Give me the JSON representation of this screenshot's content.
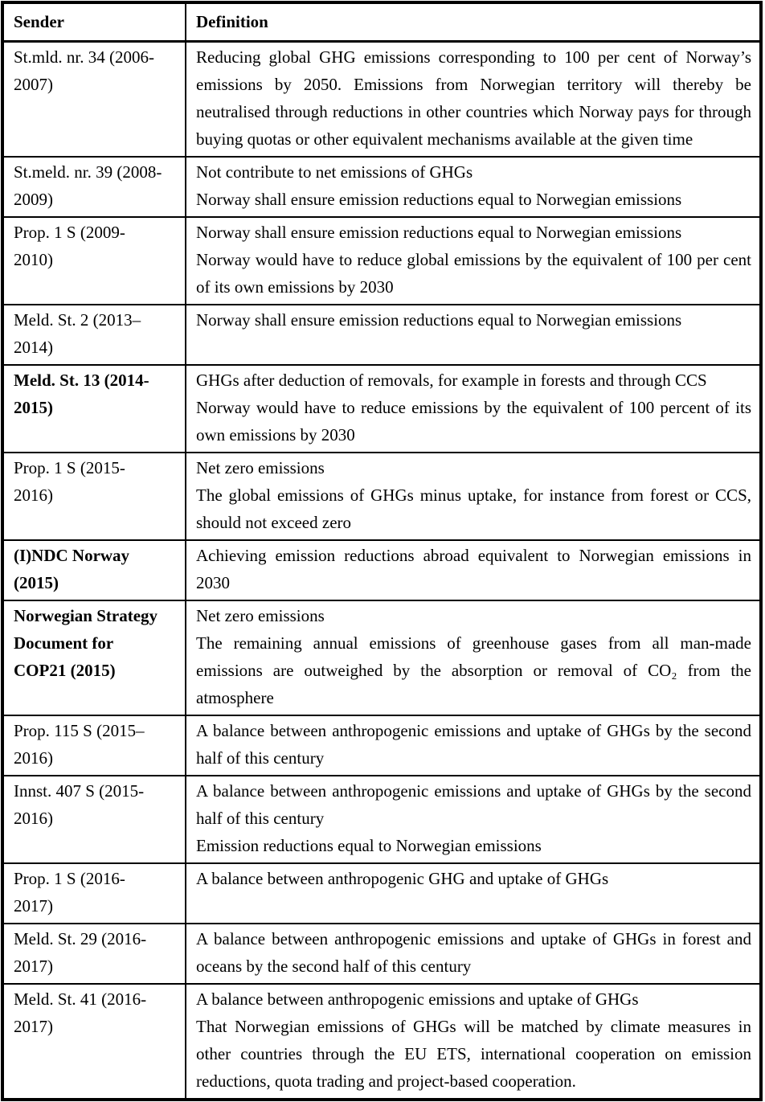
{
  "table": {
    "headers": {
      "sender": "Sender",
      "definition": "Definition"
    },
    "colors": {
      "border": "#000000",
      "text": "#000000",
      "background": "#ffffff"
    },
    "rows": [
      {
        "sender": "St.mld. nr. 34 (2006-2007)",
        "bold": false,
        "definitions": [
          "Reducing global GHG emissions corresponding to 100 per cent of Norway’s emissions by 2050. Emissions from Norwegian territory will thereby be neutralised through reductions in other countries which Norway pays for through buying quotas or other equivalent mechanisms available at the given time"
        ]
      },
      {
        "sender": "St.meld. nr. 39 (2008-2009)",
        "bold": false,
        "definitions": [
          "Not contribute to net emissions of GHGs",
          "Norway shall ensure emission reductions equal to Norwegian emissions"
        ]
      },
      {
        "sender": "Prop. 1 S (2009-2010)",
        "bold": false,
        "definitions": [
          "Norway shall ensure emission reductions equal to Norwegian emissions",
          "Norway would have to reduce global emissions by the equivalent of 100 per cent of its own emissions by 2030"
        ]
      },
      {
        "sender": "Meld. St. 2 (2013–2014)",
        "bold": false,
        "definitions": [
          "Norway shall ensure emission reductions equal to Norwegian emissions"
        ]
      },
      {
        "sender": "Meld. St. 13 (2014-2015)",
        "bold": true,
        "definitions": [
          "GHGs after deduction of removals, for example in forests and through CCS",
          "Norway would have to reduce emissions by the equivalent of 100 percent of its own emissions by 2030"
        ]
      },
      {
        "sender": "Prop. 1 S (2015-2016)",
        "bold": false,
        "definitions": [
          "Net zero emissions",
          "The global emissions of GHGs minus uptake, for instance from forest or CCS, should not exceed zero"
        ]
      },
      {
        "sender": "(I)NDC Norway (2015)",
        "bold": true,
        "definitions": [
          "Achieving emission reductions abroad equivalent to Norwegian emissions in 2030"
        ]
      },
      {
        "sender": "Norwegian Strategy Document for COP21 (2015)",
        "bold": true,
        "definitions": [
          "Net zero emissions",
          "The remaining annual emissions of greenhouse gases from all man-made emissions are outweighed by the absorption or removal of CO₂ from the atmosphere"
        ]
      },
      {
        "sender": "Prop. 115 S (2015–2016)",
        "bold": false,
        "definitions": [
          "A balance between anthropogenic emissions and uptake of GHGs by the second half of this century"
        ]
      },
      {
        "sender": "Innst. 407 S (2015-2016)",
        "bold": false,
        "definitions": [
          "A balance between anthropogenic emissions and uptake of GHGs by the second half of this century",
          "Emission reductions equal to Norwegian emissions"
        ]
      },
      {
        "sender": "Prop. 1 S (2016-2017)",
        "bold": false,
        "definitions": [
          "A balance between anthropogenic GHG and uptake of GHGs"
        ]
      },
      {
        "sender": "Meld. St. 29 (2016-2017)",
        "bold": false,
        "definitions": [
          "A balance between anthropogenic emissions and uptake of GHGs in forest and oceans by the second half of this century"
        ]
      },
      {
        "sender": "Meld. St. 41 (2016-2017)",
        "bold": false,
        "definitions": [
          "A balance between anthropogenic emissions and uptake of GHGs",
          "That Norwegian emissions of GHGs will be matched by climate measures in other countries through the EU ETS, international cooperation on emission reductions, quota trading and project-based cooperation."
        ]
      }
    ]
  }
}
